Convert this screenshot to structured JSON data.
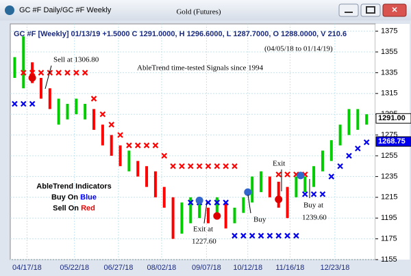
{
  "window": {
    "title": "GC #F Daily/GC #F Weekly"
  },
  "chart_data": {
    "type": "ohlc",
    "title": "Gold (Futures)",
    "header": "GC #F [Weekly] 01/13/19 +1.5000 C 1291.0000, H 1296.6000, L 1287.7000, O 1288.0000, V 210.6",
    "date_range": "(04/05/18 to 01/14/19)",
    "subtitle": "AbleTrend time-tested Signals since 1994",
    "legend_box": {
      "title": "AbleTrend Indicators",
      "buy": [
        "Buy On ",
        "Blue"
      ],
      "sell": [
        "Sell On ",
        "Red"
      ]
    },
    "x": [
      0,
      1,
      2,
      3,
      4,
      5,
      6,
      7,
      8,
      9,
      10,
      11,
      12,
      13,
      14,
      15,
      16,
      17,
      18,
      19,
      20,
      21,
      22,
      23,
      24,
      25,
      26,
      27,
      28,
      29,
      30,
      31,
      32,
      33,
      34,
      35,
      36,
      37,
      38,
      39,
      40
    ],
    "high": [
      1350,
      1370,
      1345,
      1330,
      1320,
      1310,
      1305,
      1310,
      1305,
      1300,
      1285,
      1275,
      1265,
      1260,
      1250,
      1245,
      1240,
      1225,
      1215,
      1210,
      1215,
      1210,
      1205,
      1215,
      1210,
      1205,
      1215,
      1235,
      1240,
      1235,
      1230,
      1225,
      1235,
      1235,
      1245,
      1260,
      1270,
      1285,
      1300,
      1300,
      1295
    ],
    "low": [
      1330,
      1320,
      1325,
      1310,
      1300,
      1285,
      1290,
      1295,
      1290,
      1280,
      1265,
      1255,
      1245,
      1240,
      1235,
      1225,
      1215,
      1205,
      1175,
      1180,
      1190,
      1195,
      1190,
      1195,
      1185,
      1190,
      1200,
      1210,
      1220,
      1215,
      1205,
      1195,
      1215,
      1220,
      1225,
      1240,
      1250,
      1265,
      1275,
      1280,
      1285
    ],
    "colors": [
      "#00cc00",
      "#00cc00",
      "#ff0000",
      "#ff0000",
      "#ff0000",
      "#00cc00",
      "#00cc00",
      "#00cc00",
      "#00cc00",
      "#ff0000",
      "#ff0000",
      "#ff0000",
      "#ff0000",
      "#00cc00",
      "#ff0000",
      "#ff0000",
      "#ff0000",
      "#ff0000",
      "#ff0000",
      "#00cc00",
      "#00cc00",
      "#00cc00",
      "#ff0000",
      "#00cc00",
      "#ff0000",
      "#00cc00",
      "#00cc00",
      "#00cc00",
      "#00cc00",
      "#ff0000",
      "#ff0000",
      "#ff0000",
      "#00cc00",
      "#00cc00",
      "#00cc00",
      "#00cc00",
      "#00cc00",
      "#00cc00",
      "#00cc00",
      "#00cc00",
      "#00cc00"
    ],
    "sell_stop": [
      null,
      1335,
      1335,
      1335,
      1335,
      1335,
      1335,
      1335,
      1335,
      1310,
      1295,
      1285,
      1275,
      1265,
      1265,
      1265,
      1265,
      1255,
      1245,
      1245,
      1245,
      1245,
      1245,
      1245,
      1245,
      1245,
      null,
      null,
      null,
      null,
      1237,
      1237,
      1237,
      1237,
      null,
      null,
      null,
      null,
      null,
      null,
      null
    ],
    "sell_color": "#ff0000",
    "buy_stop": [
      1305,
      1305,
      1305,
      null,
      null,
      null,
      null,
      null,
      null,
      null,
      null,
      null,
      null,
      null,
      null,
      null,
      null,
      null,
      null,
      null,
      1210,
      1210,
      1210,
      1210,
      1210,
      1178,
      1178,
      1178,
      1178,
      1178,
      1178,
      1178,
      1178,
      1218,
      1218,
      1218,
      1235,
      1245,
      1255,
      1262,
      1268
    ],
    "buy_color": "#0000ee",
    "signals": [
      {
        "x": 2,
        "value": 1330,
        "color": "#dd0000"
      },
      {
        "x": 21,
        "value": 1212,
        "color": "#3366cc"
      },
      {
        "x": 23,
        "value": 1197,
        "color": "#dd0000"
      },
      {
        "x": 26.5,
        "value": 1220,
        "color": "#3366cc"
      },
      {
        "x": 30,
        "value": 1213,
        "color": "#dd0000"
      },
      {
        "x": 32.5,
        "value": 1236,
        "color": "#3366cc"
      }
    ],
    "annotations": [
      [
        "Sell at 1306.80"
      ],
      [
        "Exit at",
        "1227.60"
      ],
      [
        "Buy"
      ],
      [
        "Exit"
      ],
      [
        "Buy at",
        "1239.60"
      ]
    ],
    "price_tags": [
      {
        "value": 1291,
        "label": "1291.00"
      },
      {
        "value": 1268.75,
        "label": "1268.75"
      }
    ],
    "xlim": [
      -0.5,
      41
    ],
    "xticks": [
      {
        "value": 1.4,
        "label": "04/17/18"
      },
      {
        "value": 6.8,
        "label": "05/22/18"
      },
      {
        "value": 11.8,
        "label": "06/27/18"
      },
      {
        "value": 16.7,
        "label": "08/02/18"
      },
      {
        "value": 21.8,
        "label": "09/07/18"
      },
      {
        "value": 26.5,
        "label": "10/12/18"
      },
      {
        "value": 31.3,
        "label": "11/16/18"
      },
      {
        "value": 36.4,
        "label": "12/23/18"
      }
    ],
    "ylim": [
      1155,
      1382
    ],
    "yticks": [
      1155,
      1175,
      1195,
      1215,
      1235,
      1255,
      1275,
      1295,
      1315,
      1335,
      1355,
      1375
    ],
    "grid": true
  }
}
